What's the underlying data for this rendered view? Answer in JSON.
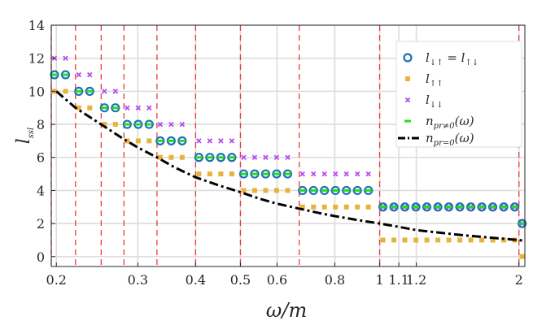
{
  "chart_data": {
    "type": "scatter",
    "title": "",
    "xlabel": "ω/m",
    "ylabel": "l_ssl",
    "x_scale": "log",
    "xlim": [
      0.195,
      2.06
    ],
    "ylim": [
      -0.6,
      14
    ],
    "grid": true,
    "legend_position": "top-right",
    "x_ticks": [
      0.2,
      0.3,
      0.4,
      0.5,
      0.6,
      0.8,
      1,
      1.1,
      1.2,
      2
    ],
    "x_tick_labels": [
      "0.2",
      "0.3",
      "0.4",
      "0.5",
      "0.6",
      "0.8",
      "1",
      "1.1",
      "1.2",
      "2"
    ],
    "y_ticks": [
      0,
      2,
      4,
      6,
      8,
      10,
      12,
      14
    ],
    "y_tick_labels": [
      "0",
      "2",
      "4",
      "6",
      "8",
      "10",
      "12",
      "14"
    ],
    "threshold_lines": [
      0.195,
      0.22,
      0.25,
      0.28,
      0.33,
      0.4,
      0.5,
      0.67,
      1.0,
      2.0
    ],
    "series": [
      {
        "name": "l↓↑ = l↑↓",
        "label_main": "l",
        "label_sub": "↓↑",
        "label_eq": " = l",
        "label_sub2": "↑↓",
        "marker": "circle",
        "color": "#1f6fb5",
        "ranges": [
          [
            0.195,
            0.22,
            11
          ],
          [
            0.22,
            0.25,
            10
          ],
          [
            0.25,
            0.28,
            9
          ],
          [
            0.28,
            0.33,
            8
          ],
          [
            0.33,
            0.4,
            7
          ],
          [
            0.4,
            0.5,
            6
          ],
          [
            0.5,
            0.67,
            5
          ],
          [
            0.67,
            1.0,
            4
          ],
          [
            1.0,
            2.0,
            3
          ],
          [
            2.0,
            2.06,
            2
          ]
        ]
      },
      {
        "name": "l↑↑",
        "label_main": "l",
        "label_sub": "↑↑",
        "marker": "square",
        "color": "#e8b33a",
        "ranges": [
          [
            0.195,
            0.22,
            10
          ],
          [
            0.22,
            0.25,
            9
          ],
          [
            0.25,
            0.28,
            8
          ],
          [
            0.28,
            0.33,
            7
          ],
          [
            0.33,
            0.4,
            6
          ],
          [
            0.4,
            0.5,
            5
          ],
          [
            0.5,
            0.67,
            4
          ],
          [
            0.67,
            1.0,
            3
          ],
          [
            1.0,
            2.0,
            1
          ],
          [
            2.0,
            2.06,
            0
          ]
        ]
      },
      {
        "name": "l↓↓",
        "label_main": "l",
        "label_sub": "↓↓",
        "marker": "x",
        "color": "#b44cf0",
        "ranges": [
          [
            0.195,
            0.22,
            12
          ],
          [
            0.22,
            0.25,
            11
          ],
          [
            0.25,
            0.28,
            10
          ],
          [
            0.28,
            0.33,
            9
          ],
          [
            0.33,
            0.4,
            8
          ],
          [
            0.4,
            0.5,
            7
          ],
          [
            0.5,
            0.67,
            6
          ],
          [
            0.67,
            1.0,
            5
          ],
          [
            1.0,
            2.0,
            3
          ],
          [
            2.0,
            2.06,
            2
          ]
        ]
      },
      {
        "name": "n_{pr≠0}(ω)",
        "label_main": "n",
        "label_sub": "pr≠0",
        "label_tail": "(ω)",
        "marker": "dash",
        "color": "#22dd22",
        "ranges": [
          [
            0.195,
            0.22,
            11
          ],
          [
            0.22,
            0.25,
            10
          ],
          [
            0.25,
            0.28,
            9
          ],
          [
            0.28,
            0.33,
            8
          ],
          [
            0.33,
            0.4,
            7
          ],
          [
            0.4,
            0.5,
            6
          ],
          [
            0.5,
            0.67,
            5
          ],
          [
            0.67,
            1.0,
            4
          ],
          [
            1.0,
            2.0,
            3
          ],
          [
            2.0,
            2.06,
            2
          ]
        ]
      },
      {
        "name": "n_{pr=0}(ω)",
        "label_main": "n",
        "label_sub": "pr=0",
        "label_tail": "(ω)",
        "marker": "dashdot",
        "color": "#000000",
        "x": [
          0.2,
          0.22,
          0.25,
          0.28,
          0.3,
          0.33,
          0.36,
          0.4,
          0.45,
          0.5,
          0.55,
          0.6,
          0.67,
          0.75,
          0.8,
          0.9,
          1.0,
          1.1,
          1.2,
          1.5,
          2.0,
          2.06
        ],
        "y": [
          10.0,
          9.0,
          8.0,
          7.1,
          6.6,
          6.0,
          5.4,
          4.8,
          4.3,
          3.9,
          3.5,
          3.2,
          2.9,
          2.6,
          2.45,
          2.2,
          2.0,
          1.8,
          1.6,
          1.3,
          1.0,
          0.95
        ]
      }
    ]
  }
}
